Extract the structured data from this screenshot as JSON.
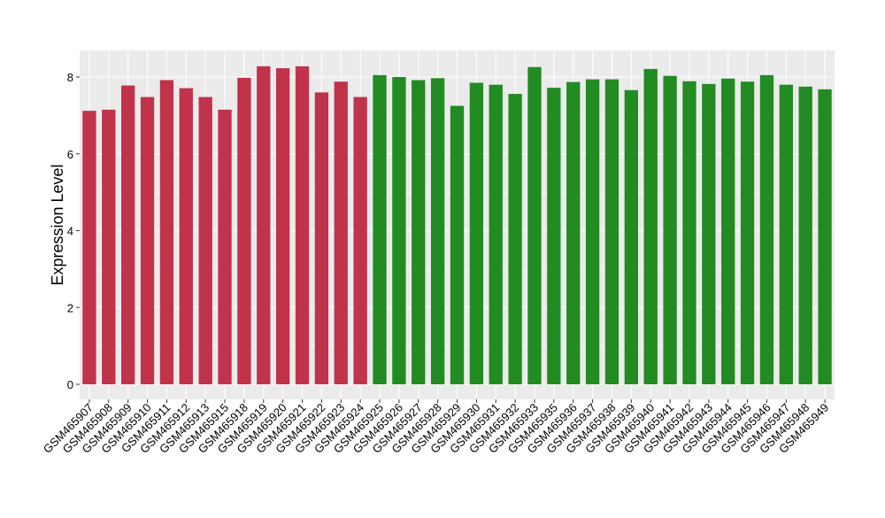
{
  "chart_data": {
    "type": "bar",
    "title": "",
    "xlabel": "",
    "ylabel": "Expression Level",
    "ylim": [
      0,
      8.7
    ],
    "yticks": [
      0,
      2,
      4,
      6,
      8
    ],
    "grid": true,
    "legend": "none",
    "categories": [
      "GSM465907",
      "GSM465908",
      "GSM465909",
      "GSM465910",
      "GSM465911",
      "GSM465912",
      "GSM465913",
      "GSM465915",
      "GSM465918",
      "GSM465919",
      "GSM465920",
      "GSM465921",
      "GSM465922",
      "GSM465923",
      "GSM465924",
      "GSM465925",
      "GSM465926",
      "GSM465927",
      "GSM465928",
      "GSM465929",
      "GSM465930",
      "GSM465931",
      "GSM465932",
      "GSM465933",
      "GSM465935",
      "GSM465936",
      "GSM465937",
      "GSM465938",
      "GSM465939",
      "GSM465940",
      "GSM465941",
      "GSM465942",
      "GSM465943",
      "GSM465944",
      "GSM465945",
      "GSM465946",
      "GSM465947",
      "GSM465948",
      "GSM465949"
    ],
    "values": [
      7.12,
      7.15,
      7.78,
      7.48,
      7.92,
      7.71,
      7.48,
      7.15,
      7.98,
      8.28,
      8.23,
      8.28,
      7.6,
      7.88,
      7.48,
      8.05,
      8.0,
      7.92,
      7.97,
      7.25,
      7.85,
      7.8,
      7.56,
      8.26,
      7.72,
      7.87,
      7.94,
      7.94,
      7.66,
      8.21,
      8.03,
      7.89,
      7.82,
      7.96,
      7.88,
      8.05,
      7.8,
      7.75,
      7.68
    ],
    "groups": [
      0,
      0,
      0,
      0,
      0,
      0,
      0,
      0,
      0,
      0,
      0,
      0,
      0,
      0,
      0,
      1,
      1,
      1,
      1,
      1,
      1,
      1,
      1,
      1,
      1,
      1,
      1,
      1,
      1,
      1,
      1,
      1,
      1,
      1,
      1,
      1,
      1,
      1,
      1
    ],
    "colors": {
      "group0": "#c0334a",
      "group1": "#228b22",
      "panel": "#ebebeb",
      "grid": "#ffffff",
      "text": "#000000",
      "tick": "#333333"
    }
  }
}
